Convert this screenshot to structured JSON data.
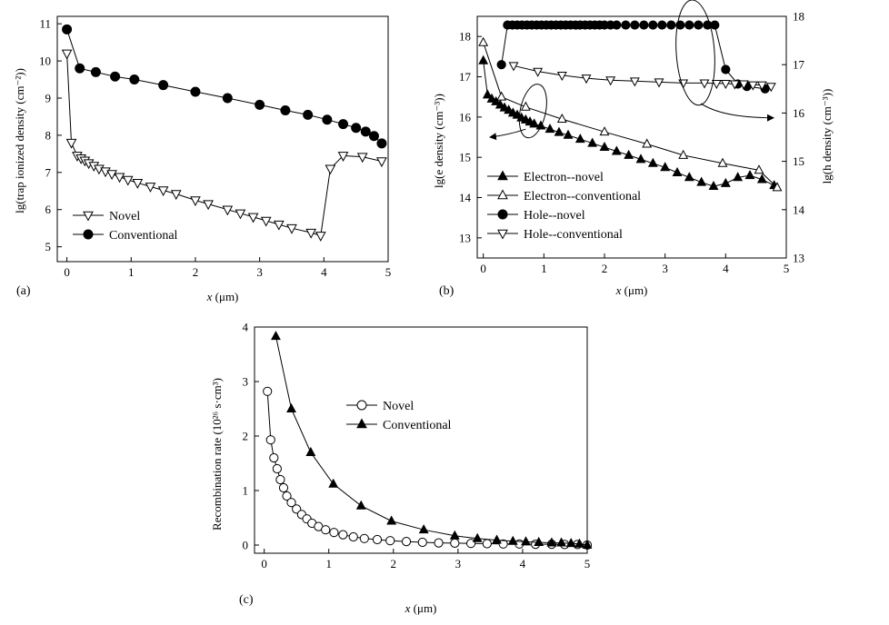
{
  "chart_data": [
    {
      "panel": "(a)",
      "type": "line",
      "xlabel_var": "x",
      "xlabel_unit": "(μm)",
      "ylabel": "lg(trap ionized density (cm⁻²))",
      "xlim": [
        -0.15,
        5
      ],
      "ylim": [
        4.6,
        11.2
      ],
      "xticks": [
        0,
        1,
        2,
        3,
        4,
        5
      ],
      "yticks": [
        5,
        6,
        7,
        8,
        9,
        10,
        11
      ],
      "legend_position": "bottom-left",
      "series": [
        {
          "name": "Novel",
          "marker": "triangle-down-open",
          "x": [
            0.0,
            0.07,
            0.16,
            0.22,
            0.28,
            0.34,
            0.42,
            0.5,
            0.6,
            0.7,
            0.82,
            0.95,
            1.1,
            1.3,
            1.5,
            1.7,
            2.0,
            2.2,
            2.5,
            2.7,
            2.9,
            3.1,
            3.3,
            3.5,
            3.8,
            3.95,
            4.1,
            4.3,
            4.6,
            4.9
          ],
          "y": [
            10.2,
            7.8,
            7.45,
            7.38,
            7.32,
            7.25,
            7.18,
            7.1,
            7.03,
            6.96,
            6.88,
            6.8,
            6.72,
            6.62,
            6.52,
            6.42,
            6.25,
            6.15,
            6.0,
            5.9,
            5.8,
            5.7,
            5.6,
            5.5,
            5.38,
            5.3,
            7.1,
            7.45,
            7.42,
            7.3
          ]
        },
        {
          "name": "Conventional",
          "marker": "circle-filled",
          "x": [
            0.0,
            0.2,
            0.45,
            0.75,
            1.05,
            1.5,
            2.0,
            2.5,
            3.0,
            3.4,
            3.75,
            4.05,
            4.3,
            4.5,
            4.65,
            4.78,
            4.9
          ],
          "y": [
            10.85,
            9.8,
            9.7,
            9.58,
            9.5,
            9.35,
            9.17,
            9.0,
            8.82,
            8.67,
            8.55,
            8.42,
            8.3,
            8.2,
            8.1,
            7.98,
            7.78
          ]
        }
      ]
    },
    {
      "panel": "(b)",
      "type": "line",
      "xlabel_var": "x",
      "xlabel_unit": "(μm)",
      "ylabel_left": "lg(e density (cm⁻³))",
      "ylabel_right": "lg(h density (cm⁻³))",
      "xlim": [
        -0.1,
        5
      ],
      "ylim_left": [
        12.5,
        18.5
      ],
      "ylim_right": [
        13,
        18
      ],
      "xticks": [
        0,
        1,
        2,
        3,
        4,
        5
      ],
      "yticks_left": [
        13,
        14,
        15,
        16,
        17,
        18
      ],
      "yticks_right": [
        13,
        14,
        15,
        16,
        17,
        18
      ],
      "legend_position": "bottom-left",
      "series": [
        {
          "name": "Electron--novel",
          "axis": "left",
          "marker": "triangle-up-filled",
          "x": [
            0.0,
            0.07,
            0.14,
            0.21,
            0.28,
            0.35,
            0.42,
            0.49,
            0.56,
            0.63,
            0.7,
            0.77,
            0.84,
            0.95,
            1.1,
            1.25,
            1.4,
            1.6,
            1.8,
            2.0,
            2.2,
            2.4,
            2.6,
            2.8,
            3.0,
            3.2,
            3.4,
            3.6,
            3.8,
            4.0,
            4.2,
            4.4,
            4.6,
            4.8
          ],
          "y": [
            17.4,
            16.55,
            16.45,
            16.38,
            16.3,
            16.23,
            16.17,
            16.1,
            16.05,
            15.98,
            15.93,
            15.88,
            15.83,
            15.78,
            15.7,
            15.62,
            15.55,
            15.45,
            15.35,
            15.25,
            15.15,
            15.05,
            14.95,
            14.85,
            14.75,
            14.62,
            14.5,
            14.38,
            14.28,
            14.35,
            14.5,
            14.55,
            14.45,
            14.3
          ]
        },
        {
          "name": "Electron--conventional",
          "axis": "left",
          "marker": "triangle-up-open",
          "x": [
            0.0,
            0.3,
            0.7,
            1.3,
            2.0,
            2.7,
            3.3,
            3.95,
            4.55,
            4.85
          ],
          "y": [
            17.85,
            16.5,
            16.25,
            15.95,
            15.63,
            15.33,
            15.05,
            14.85,
            14.68,
            14.25
          ]
        },
        {
          "name": "Hole--novel",
          "axis": "right",
          "marker": "circle-filled",
          "x": [
            0.3,
            0.4,
            0.48,
            0.56,
            0.64,
            0.72,
            0.8,
            0.88,
            0.96,
            1.04,
            1.12,
            1.2,
            1.28,
            1.36,
            1.44,
            1.52,
            1.6,
            1.68,
            1.76,
            1.84,
            1.92,
            2.0,
            2.1,
            2.2,
            2.35,
            2.5,
            2.65,
            2.8,
            2.95,
            3.1,
            3.25,
            3.4,
            3.55,
            3.7,
            3.82,
            4.0,
            4.2,
            4.35,
            4.65
          ],
          "y": [
            17.0,
            17.82,
            17.82,
            17.82,
            17.82,
            17.82,
            17.82,
            17.82,
            17.82,
            17.82,
            17.82,
            17.82,
            17.82,
            17.82,
            17.82,
            17.82,
            17.82,
            17.82,
            17.82,
            17.82,
            17.82,
            17.82,
            17.82,
            17.82,
            17.82,
            17.82,
            17.82,
            17.82,
            17.82,
            17.82,
            17.82,
            17.82,
            17.82,
            17.82,
            17.82,
            16.9,
            16.6,
            16.55,
            16.5
          ]
        },
        {
          "name": "Hole--conventional",
          "axis": "right",
          "marker": "triangle-down-open",
          "x": [
            0.5,
            0.9,
            1.3,
            1.7,
            2.1,
            2.5,
            2.9,
            3.3,
            3.65,
            3.85,
            4.0,
            4.15,
            4.3,
            4.45,
            4.6,
            4.75
          ],
          "y": [
            16.98,
            16.86,
            16.78,
            16.72,
            16.68,
            16.66,
            16.64,
            16.62,
            16.62,
            16.61,
            16.61,
            16.6,
            16.6,
            16.58,
            16.58,
            16.55
          ]
        }
      ]
    },
    {
      "panel": "(c)",
      "type": "line",
      "xlabel_var": "x",
      "xlabel_unit": "(μm)",
      "ylabel": "Recombination rate (10²⁶ s·cm³)",
      "xlim": [
        -0.15,
        5
      ],
      "ylim": [
        -0.15,
        4
      ],
      "xticks": [
        0,
        1,
        2,
        3,
        4,
        5
      ],
      "yticks": [
        0,
        1,
        2,
        3,
        4
      ],
      "legend_position": "top-right",
      "series": [
        {
          "name": "Novel",
          "marker": "circle-open",
          "x": [
            0.05,
            0.1,
            0.15,
            0.2,
            0.25,
            0.3,
            0.35,
            0.42,
            0.5,
            0.58,
            0.66,
            0.74,
            0.84,
            0.95,
            1.08,
            1.22,
            1.38,
            1.55,
            1.75,
            1.95,
            2.2,
            2.45,
            2.7,
            2.95,
            3.2,
            3.45,
            3.7,
            3.95,
            4.2,
            4.45,
            4.65,
            4.85,
            5.0
          ],
          "y": [
            2.82,
            1.93,
            1.6,
            1.4,
            1.2,
            1.05,
            0.9,
            0.78,
            0.66,
            0.56,
            0.48,
            0.4,
            0.34,
            0.28,
            0.23,
            0.19,
            0.15,
            0.12,
            0.1,
            0.08,
            0.065,
            0.05,
            0.04,
            0.035,
            0.03,
            0.025,
            0.02,
            0.02,
            0.015,
            0.015,
            0.01,
            0.01,
            0.0
          ]
        },
        {
          "name": "Conventional",
          "marker": "triangle-up-filled",
          "x": [
            0.18,
            0.42,
            0.72,
            1.07,
            1.5,
            1.97,
            2.47,
            2.95,
            3.3,
            3.6,
            3.85,
            4.05,
            4.25,
            4.45,
            4.6,
            4.75,
            4.88,
            5.0
          ],
          "y": [
            3.83,
            2.5,
            1.7,
            1.12,
            0.72,
            0.44,
            0.28,
            0.17,
            0.12,
            0.09,
            0.07,
            0.06,
            0.05,
            0.04,
            0.04,
            0.03,
            0.02,
            0.0
          ]
        }
      ]
    }
  ]
}
